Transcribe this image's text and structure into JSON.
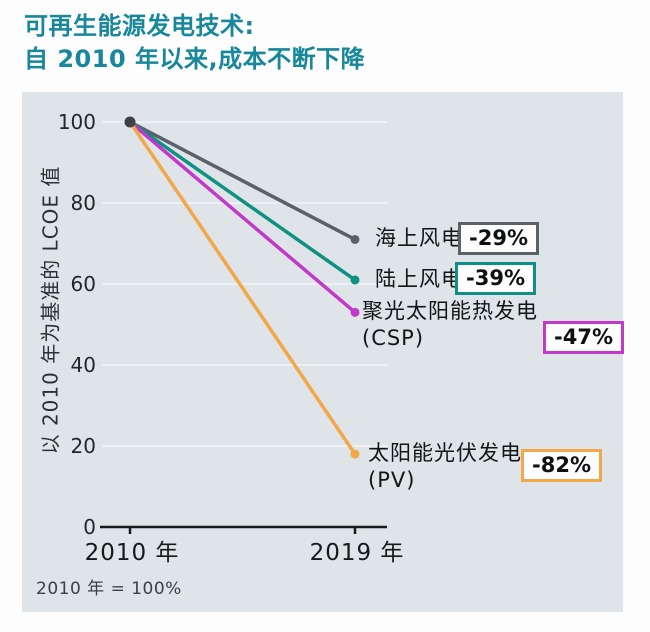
{
  "page": {
    "title_line1": "可再生能源发电技术:",
    "title_line2": "自 2010 年以来,成本不断下降",
    "footnote": "2010 年 = 100%"
  },
  "colors": {
    "title": "#17879b",
    "panel_bg": "#dee4e7",
    "grid": "#eef1f3",
    "axis": "#17191b",
    "start_dot": "#3e4246"
  },
  "chart_data": {
    "type": "line",
    "title": "可再生能源发电技术: 自 2010 年以来,成本不断下降",
    "x_categories": [
      "2010 年",
      "2019 年"
    ],
    "ylabel": "以 2010 年为基准的 LCOE 值",
    "ylim": [
      0,
      100
    ],
    "yticks": [
      0,
      20,
      40,
      60,
      80,
      100
    ],
    "grid": "horizontal",
    "baseline_note": "2010 年 = 100%",
    "series": [
      {
        "name": "海上风电",
        "name_sub": "",
        "values": [
          100,
          71
        ],
        "change_label": "-29%",
        "color": "#5b6168"
      },
      {
        "name": "陆上风电",
        "name_sub": "",
        "values": [
          100,
          61
        ],
        "change_label": "-39%",
        "color": "#0e9183"
      },
      {
        "name": "聚光太阳能热发电",
        "name_sub": "(CSP)",
        "values": [
          100,
          53
        ],
        "change_label": "-47%",
        "color": "#c238c8"
      },
      {
        "name": "太阳能光伏发电",
        "name_sub": "(PV)",
        "values": [
          100,
          18
        ],
        "change_label": "-82%",
        "color": "#f2a748"
      }
    ]
  }
}
